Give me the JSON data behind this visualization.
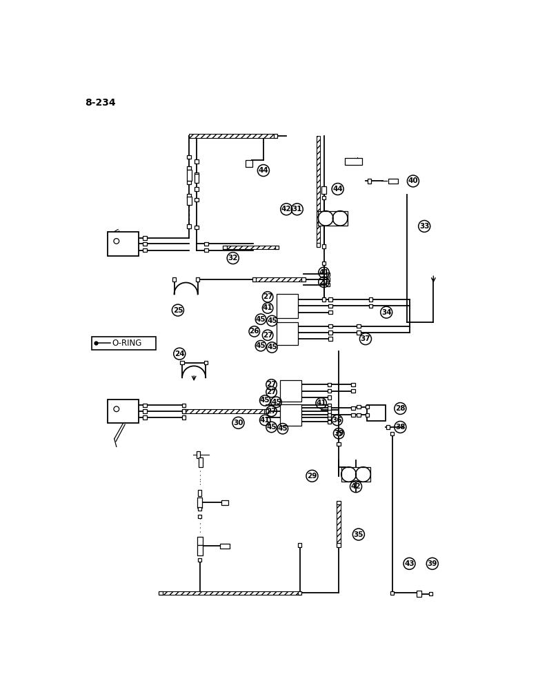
{
  "page_label": "8-234",
  "bg": "#ffffff",
  "lc": "#000000",
  "legend_text": "O-RING"
}
